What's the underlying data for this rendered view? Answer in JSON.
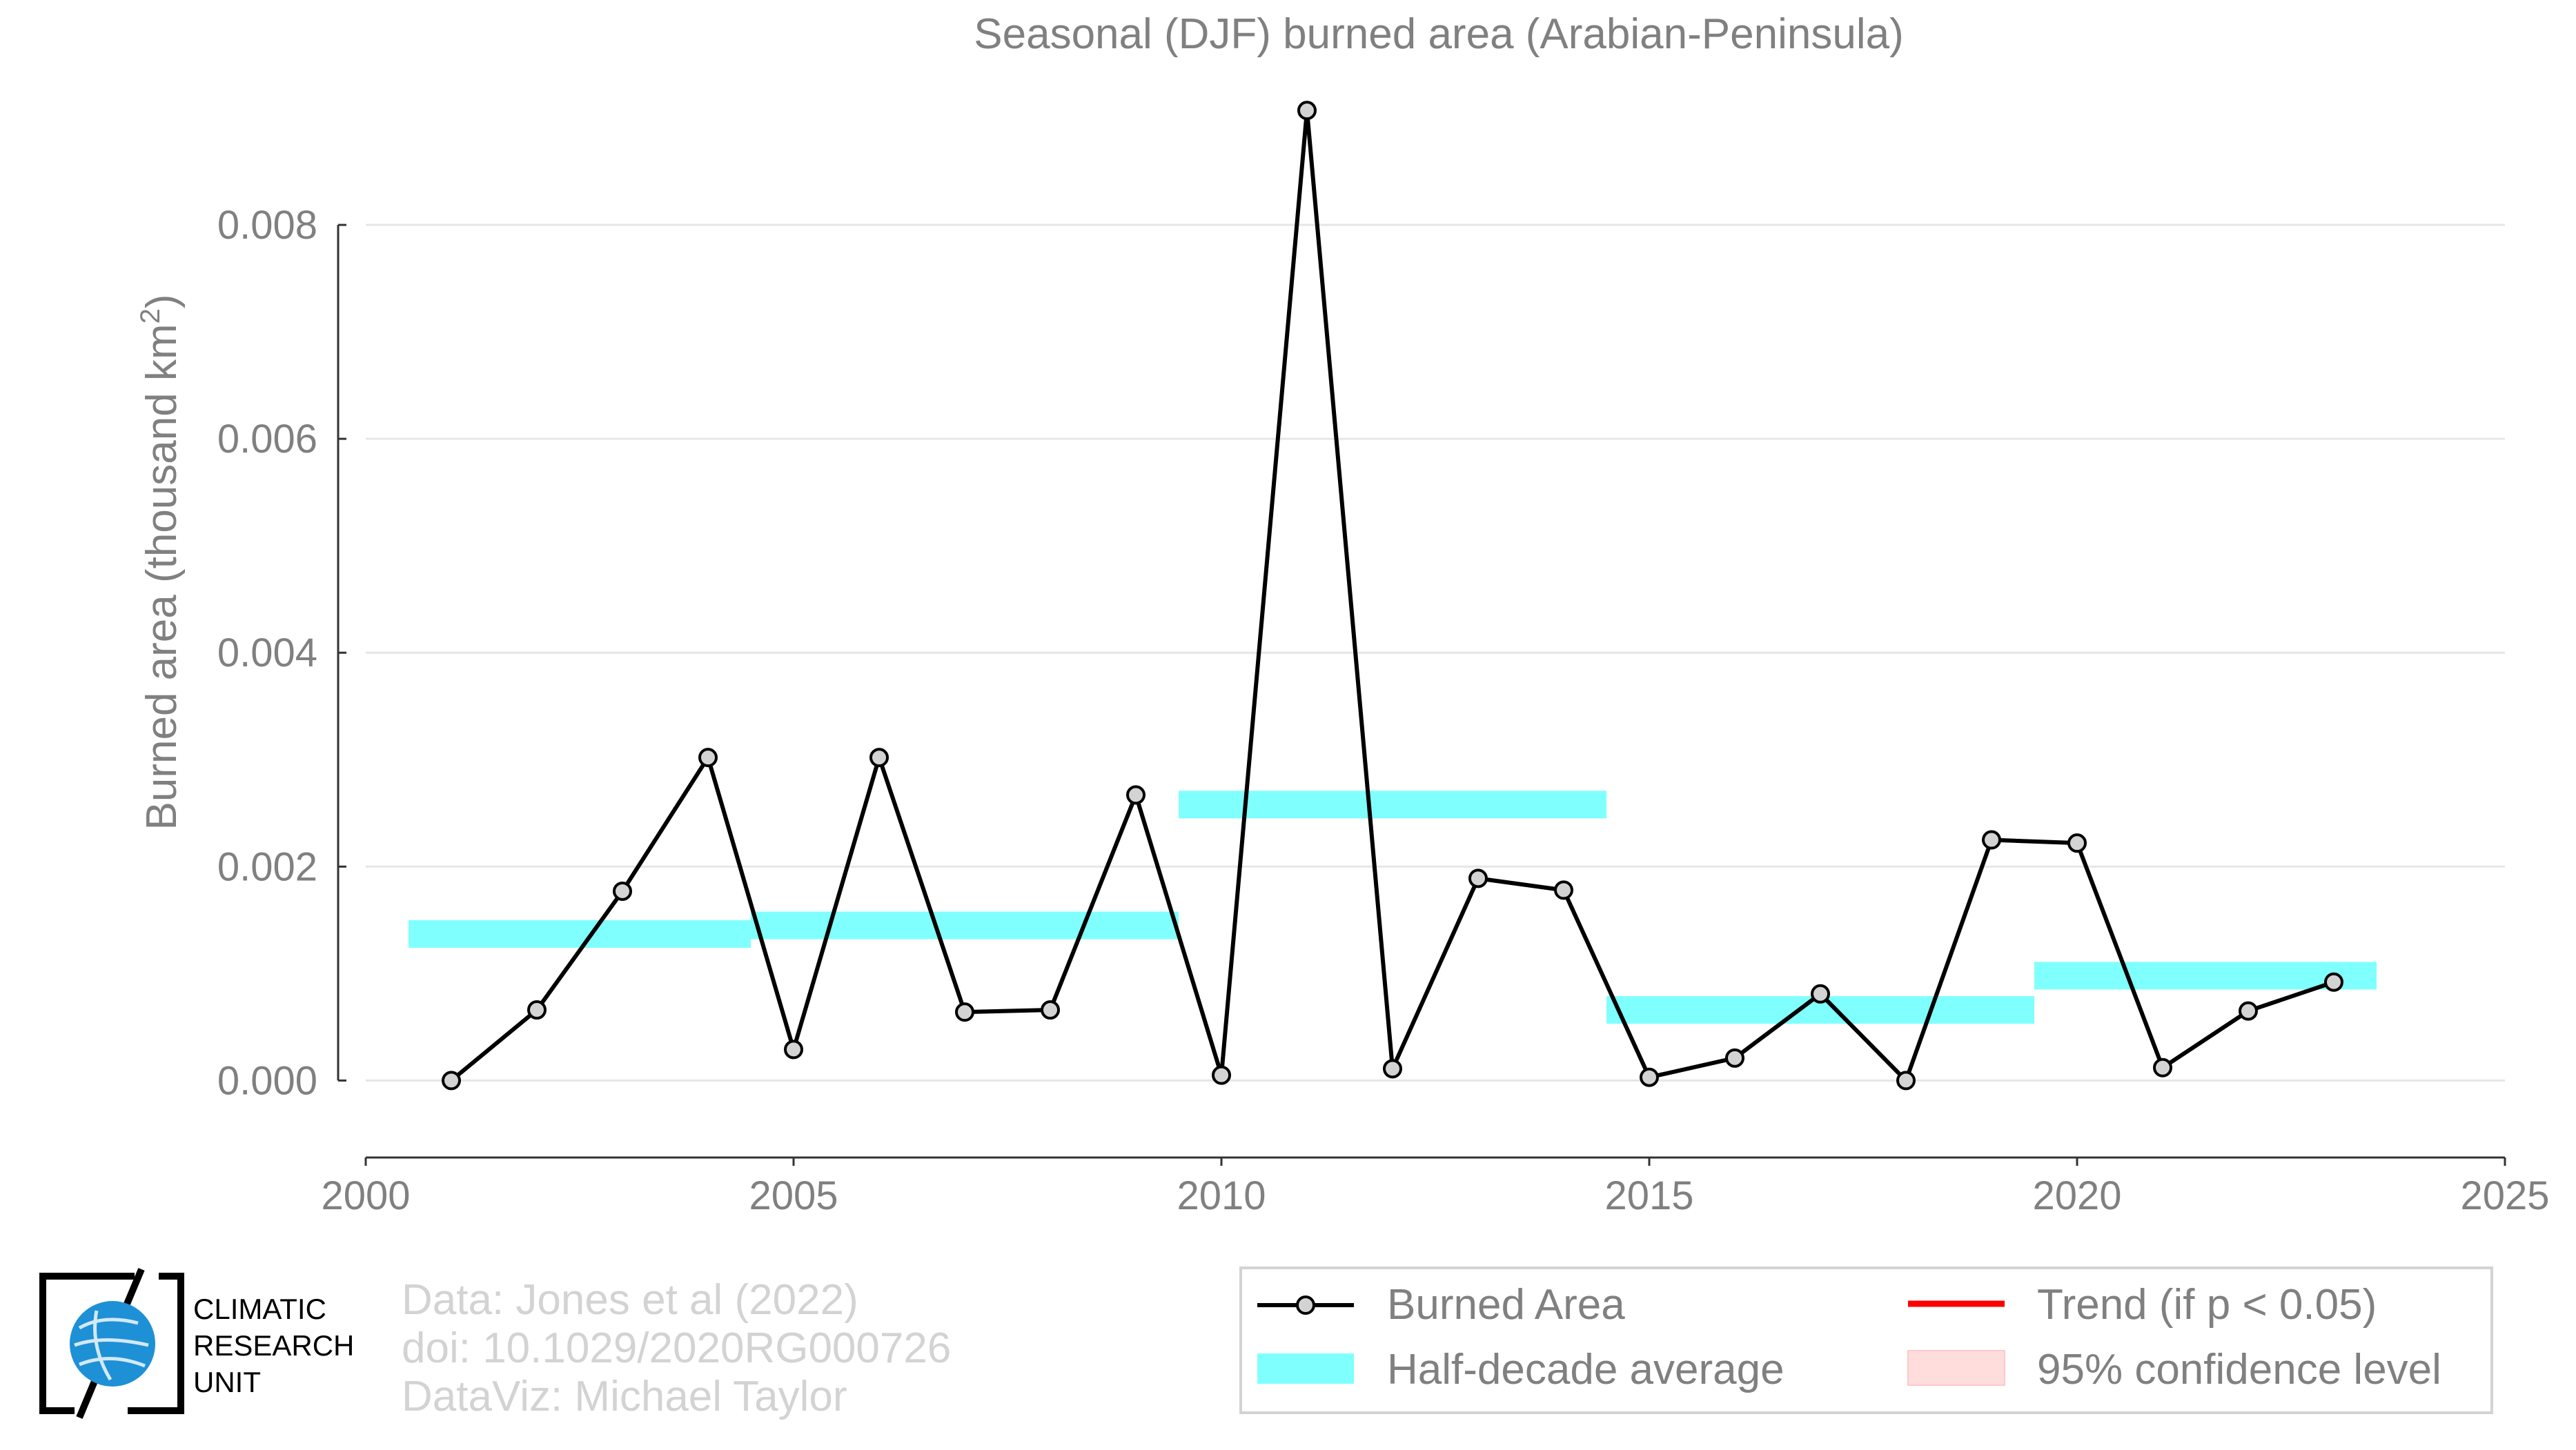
{
  "chart_data": {
    "type": "line",
    "title": "Seasonal (DJF) burned area (Arabian-Peninsula)",
    "ylabel": "Burned area (thousand km",
    "ylabel_sup": "2",
    "ylabel_close": ")",
    "xlabel": "",
    "xlim": [
      2000,
      2025
    ],
    "ylim": [
      -0.00072,
      0.0092
    ],
    "xticks": [
      2000,
      2005,
      2010,
      2015,
      2020,
      2025
    ],
    "xtick_labels": [
      "2000",
      "2005",
      "2010",
      "2015",
      "2020",
      "2025"
    ],
    "yticks": [
      0.0,
      0.002,
      0.004,
      0.006,
      0.008
    ],
    "ytick_labels": [
      "0.000",
      "0.002",
      "0.004",
      "0.006",
      "0.008"
    ],
    "grid": "horizontal",
    "series": [
      {
        "name": "Burned Area",
        "kind": "line-marker",
        "color": "#000000",
        "marker_fill": "#d3d3d3",
        "x": [
          2001,
          2002,
          2003,
          2004,
          2005,
          2006,
          2007,
          2008,
          2009,
          2010,
          2011,
          2012,
          2013,
          2014,
          2015,
          2016,
          2017,
          2018,
          2019,
          2020,
          2021,
          2022,
          2023
        ],
        "y": [
          0.0,
          0.00066,
          0.00177,
          0.00302,
          0.00029,
          0.00302,
          0.00064,
          0.00066,
          0.00267,
          5e-05,
          0.00907,
          0.00011,
          0.00189,
          0.00178,
          3e-05,
          0.00021,
          0.00081,
          0.0,
          0.00225,
          0.00222,
          0.00012,
          0.00065,
          0.00092
        ]
      },
      {
        "name": "Half-decade average",
        "kind": "band",
        "color": "#80ffff",
        "segments": [
          {
            "x0": 2000.5,
            "x1": 2004.5,
            "y": 0.00137
          },
          {
            "x0": 2004.5,
            "x1": 2009.5,
            "y": 0.00145
          },
          {
            "x0": 2009.5,
            "x1": 2014.5,
            "y": 0.00258
          },
          {
            "x0": 2014.5,
            "x1": 2019.5,
            "y": 0.00066
          },
          {
            "x0": 2019.5,
            "x1": 2023.5,
            "y": 0.00098
          }
        ]
      }
    ],
    "legend": {
      "placement": "bottom-right",
      "entries": [
        {
          "label": "Burned Area",
          "kind": "line-marker",
          "color": "#000000"
        },
        {
          "label": "Trend (if p < 0.05)",
          "kind": "line",
          "color": "#ff0000"
        },
        {
          "label": "Half-decade average",
          "kind": "band",
          "color": "#80ffff"
        },
        {
          "label": "95% confidence level",
          "kind": "patch",
          "color": "#ffdddd"
        }
      ]
    },
    "credits": [
      "Data: Jones et al (2022)",
      "doi: 10.1029/2020RG000726",
      "DataViz: Michael Taylor"
    ],
    "logo": {
      "text_lines": [
        "CLIMATIC",
        "RESEARCH",
        "UNIT"
      ],
      "icon": "globe-icon",
      "color": "#1e90d6"
    }
  }
}
